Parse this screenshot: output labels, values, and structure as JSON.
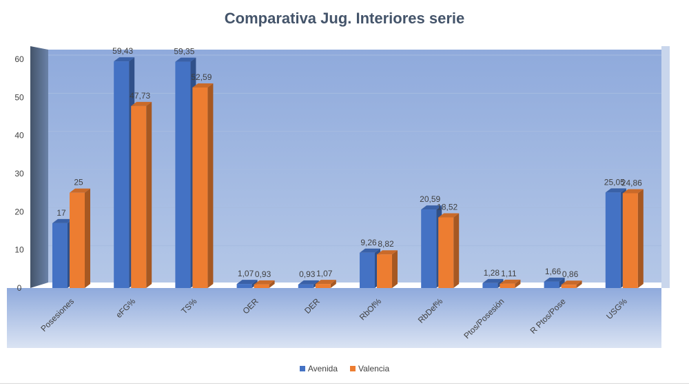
{
  "chart_data": {
    "type": "bar",
    "title": "Comparativa Jug. Interiores serie",
    "categories": [
      "Posesiones",
      "eFG%",
      "TS%",
      "OER",
      "DER",
      "RbOf%",
      "RbDef%",
      "Ptos/Posesión",
      "R Ptos/Pose",
      "USG%"
    ],
    "series": [
      {
        "name": "Avenida",
        "color": "#4472c4",
        "values": [
          17,
          59.43,
          59.35,
          1.07,
          0.93,
          9.26,
          20.59,
          1.28,
          1.66,
          25.05
        ],
        "labels": [
          "17",
          "59,43",
          "59,35",
          "1,07",
          "0,93",
          "9,26",
          "20,59",
          "1,28",
          "1,66",
          "25,05"
        ]
      },
      {
        "name": "Valencia",
        "color": "#ed7d31",
        "values": [
          25,
          47.73,
          52.59,
          0.93,
          1.07,
          8.82,
          18.52,
          1.11,
          0.86,
          24.86
        ],
        "labels": [
          "25",
          "47,73",
          "52,59",
          "0,93",
          "1,07",
          "8,82",
          "18,52",
          "1,11",
          "0,86",
          "24,86"
        ]
      }
    ],
    "yticks": [
      "0",
      "10",
      "20",
      "30",
      "40",
      "50",
      "60"
    ],
    "ylim": [
      0,
      60
    ],
    "grid": true,
    "legend_position": "bottom",
    "style": "3d-clustered-column"
  }
}
